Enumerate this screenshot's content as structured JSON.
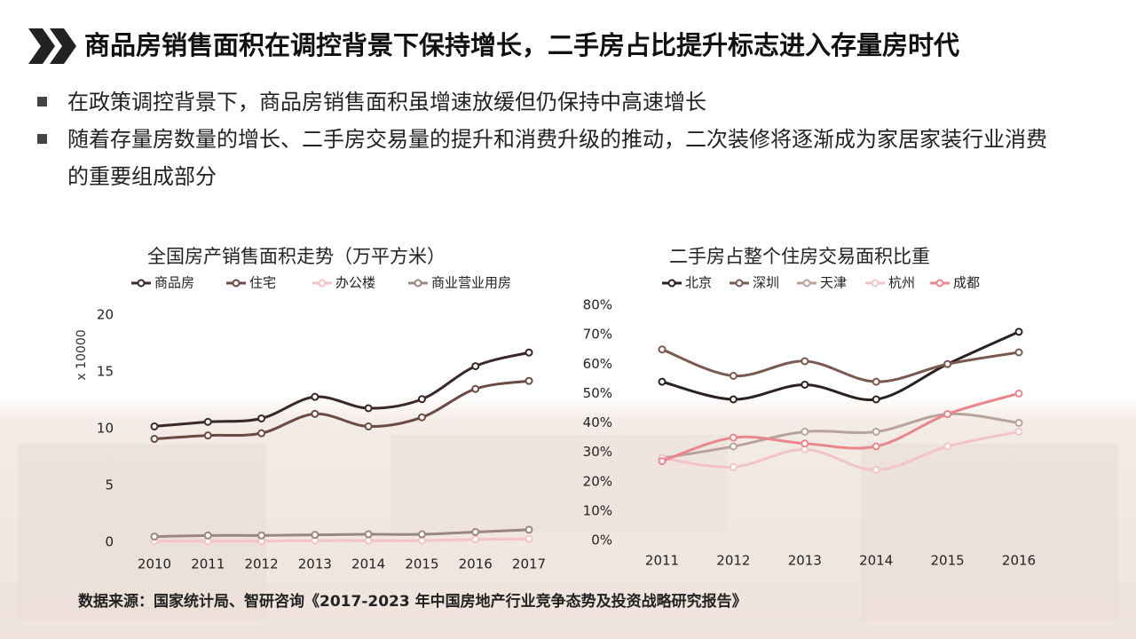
{
  "title": "商品房销售面积在调控背景下保持增长，二手房占比提升标志进入存量房时代",
  "bullets": [
    "在政策调控背景下，商品房销售面积虽增速放缓但仍保持中高速增长",
    "随着存量房数量的增长、二手房交易量的提升和消费升级的推动，二次装修将逐渐成为家居家装行业消费的重要组成部分"
  ],
  "source": "数据来源：国家统计局、智研咨询《2017-2023 年中国房地产行业竞争态势及投资战略研究报告》",
  "chart_data": [
    {
      "type": "line",
      "title": "全国房产销售面积走势（万平方米）",
      "y_label": "x 10000",
      "categories": [
        "2010",
        "2011",
        "2012",
        "2013",
        "2014",
        "2015",
        "2016",
        "2017"
      ],
      "ylim": [
        0,
        20
      ],
      "yticks": [
        0,
        5,
        10,
        15,
        20
      ],
      "series": [
        {
          "name": "商品房",
          "color": "#3a2828",
          "values": [
            10.2,
            10.6,
            10.9,
            12.8,
            11.8,
            12.6,
            15.5,
            16.7
          ]
        },
        {
          "name": "住宅",
          "color": "#6b4a42",
          "values": [
            9.1,
            9.4,
            9.6,
            11.3,
            10.2,
            11.0,
            13.5,
            14.2
          ]
        },
        {
          "name": "办公楼",
          "color": "#f3c3c8",
          "values": [
            0.1,
            0.1,
            0.1,
            0.15,
            0.15,
            0.15,
            0.25,
            0.3
          ]
        },
        {
          "name": "商业营业用房",
          "color": "#9b8580",
          "values": [
            0.5,
            0.6,
            0.6,
            0.65,
            0.7,
            0.7,
            0.9,
            1.1
          ]
        }
      ]
    },
    {
      "type": "line",
      "title": "二手房占整个住房交易面积比重",
      "categories": [
        "2011",
        "2012",
        "2013",
        "2014",
        "2015",
        "2016"
      ],
      "ylim": [
        0,
        80
      ],
      "yticks": [
        {
          "value": 0,
          "label": "0%"
        },
        {
          "value": 10,
          "label": "10%"
        },
        {
          "value": 20,
          "label": "20%"
        },
        {
          "value": 30,
          "label": "30%"
        },
        {
          "value": 40,
          "label": "40%"
        },
        {
          "value": 50,
          "label": "50%"
        },
        {
          "value": 60,
          "label": "60%"
        },
        {
          "value": 70,
          "label": "70%"
        },
        {
          "value": 80,
          "label": "80%"
        }
      ],
      "series": [
        {
          "name": "北京",
          "color": "#2b2020",
          "values": [
            54,
            48,
            53,
            48,
            60,
            71
          ]
        },
        {
          "name": "深圳",
          "color": "#7a5a50",
          "values": [
            65,
            56,
            61,
            54,
            60,
            64
          ]
        },
        {
          "name": "天津",
          "color": "#b8a39c",
          "values": [
            28,
            32,
            37,
            37,
            43,
            40
          ]
        },
        {
          "name": "杭州",
          "color": "#f2c4c8",
          "values": [
            28,
            25,
            31,
            24,
            32,
            37
          ]
        },
        {
          "name": "成都",
          "color": "#e8868c",
          "values": [
            27,
            35,
            33,
            32,
            43,
            50
          ]
        }
      ]
    }
  ]
}
